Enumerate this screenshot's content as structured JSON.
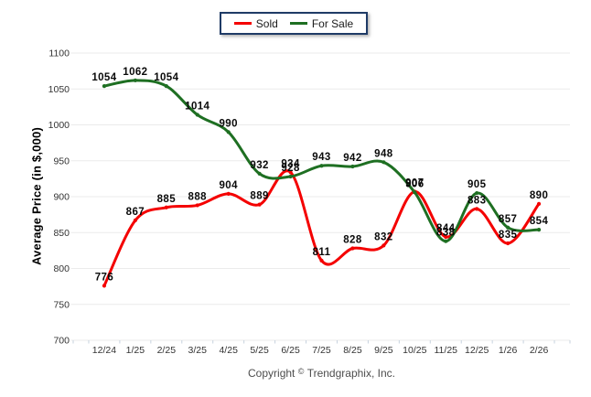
{
  "chart_data": {
    "type": "line",
    "x_labels": [
      "12/24",
      "1/25",
      "2/25",
      "3/25",
      "4/25",
      "5/25",
      "6/25",
      "7/25",
      "8/25",
      "9/25",
      "10/25",
      "11/25",
      "12/25",
      "1/26",
      "2/26"
    ],
    "series": [
      {
        "name": "Sold",
        "color": "#f40000",
        "values": [
          776,
          867,
          885,
          888,
          904,
          889,
          934,
          811,
          828,
          832,
          907,
          844,
          883,
          835,
          890
        ]
      },
      {
        "name": "For Sale",
        "color": "#1e6f22",
        "values": [
          1054,
          1062,
          1054,
          1014,
          990,
          932,
          928,
          943,
          942,
          948,
          906,
          838,
          905,
          857,
          854
        ]
      }
    ],
    "ylabel": "Average Price (in $,000)",
    "xlabel": "",
    "title": "",
    "ylim": [
      700,
      1100
    ],
    "ytick_step": 50,
    "grid": "horizontal",
    "legend_position": "top-center"
  },
  "footer": {
    "prefix": "Copyright",
    "symbol": "©",
    "company": "Trendgraphix, Inc."
  }
}
